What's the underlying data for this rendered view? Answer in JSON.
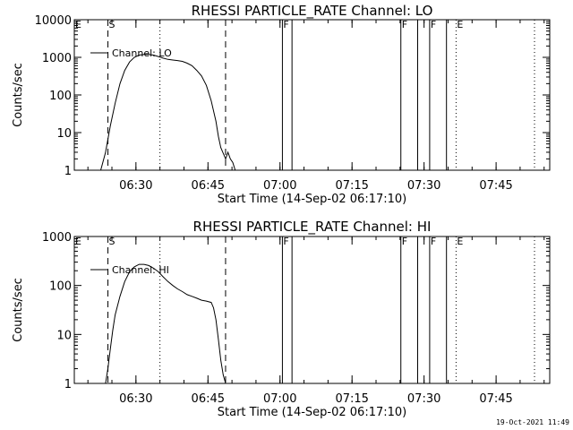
{
  "timestamp": "19-Oct-2021 11:49",
  "chart_data": [
    {
      "type": "line",
      "title": "RHESSI PARTICLE_RATE Channel: LO",
      "ylabel": "Counts/sec",
      "xlabel": "Start Time (14-Sep-02 06:17:10)",
      "yscale": "log",
      "ylim": [
        1,
        10000
      ],
      "yticks": [
        "1",
        "10",
        "100",
        "1000",
        "10000"
      ],
      "xlim": [
        "06:17:10",
        "07:56:10"
      ],
      "xticks": [
        "06:30",
        "06:45",
        "07:00",
        "07:15",
        "07:30",
        "07:45"
      ],
      "legend": {
        "placement": "top-left",
        "entries": [
          "Channel: LO"
        ]
      },
      "series": [
        {
          "name": "Channel: LO",
          "x": [
            "06:22:40",
            "06:23:40",
            "06:24:40",
            "06:25:40",
            "06:26:40",
            "06:27:40",
            "06:28:40",
            "06:29:40",
            "06:30:40",
            "06:31:40",
            "06:32:40",
            "06:33:40",
            "06:34:40",
            "06:35:40",
            "06:36:40",
            "06:37:40",
            "06:38:40",
            "06:39:40",
            "06:40:40",
            "06:41:40",
            "06:42:40",
            "06:43:40",
            "06:44:40",
            "06:45:40",
            "06:46:40",
            "06:47:10",
            "06:47:40",
            "06:48:40",
            "06:49:10",
            "06:49:40",
            "06:50:10",
            "06:50:40"
          ],
          "values": [
            1,
            3,
            15,
            60,
            200,
            450,
            750,
            1000,
            1150,
            1200,
            1200,
            1150,
            1050,
            950,
            880,
            850,
            820,
            780,
            700,
            600,
            450,
            320,
            180,
            70,
            20,
            8,
            4,
            2,
            3,
            2,
            1.6,
            1
          ]
        }
      ]
    },
    {
      "type": "line",
      "title": "RHESSI PARTICLE_RATE Channel: HI",
      "ylabel": "Counts/sec",
      "xlabel": "Start Time (14-Sep-02 06:17:10)",
      "yscale": "log",
      "ylim": [
        1,
        1000
      ],
      "yticks": [
        "1",
        "10",
        "100",
        "1000"
      ],
      "xlim": [
        "06:17:10",
        "07:56:10"
      ],
      "xticks": [
        "06:30",
        "06:45",
        "07:00",
        "07:15",
        "07:30",
        "07:45"
      ],
      "legend": {
        "placement": "top-left",
        "entries": [
          "Channel: HI"
        ]
      },
      "series": [
        {
          "name": "Channel: HI",
          "x": [
            "06:23:40",
            "06:24:10",
            "06:24:40",
            "06:25:10",
            "06:25:40",
            "06:26:40",
            "06:27:40",
            "06:28:40",
            "06:29:40",
            "06:30:40",
            "06:31:40",
            "06:32:40",
            "06:33:40",
            "06:34:40",
            "06:35:40",
            "06:36:40",
            "06:37:40",
            "06:38:40",
            "06:39:40",
            "06:40:40",
            "06:41:40",
            "06:42:40",
            "06:43:40",
            "06:44:40",
            "06:45:40",
            "06:46:10",
            "06:46:40",
            "06:47:10",
            "06:47:40",
            "06:48:10",
            "06:48:40"
          ],
          "values": [
            1,
            2,
            5,
            12,
            25,
            60,
            120,
            190,
            240,
            270,
            270,
            255,
            225,
            190,
            150,
            120,
            100,
            85,
            75,
            65,
            60,
            55,
            50,
            48,
            45,
            35,
            20,
            8,
            3,
            1.5,
            1
          ]
        }
      ]
    }
  ],
  "markers": {
    "dashed": [
      {
        "time": "06:24:10",
        "label": "S"
      },
      {
        "time": "06:48:40",
        "label": ""
      }
    ],
    "dotted": [
      {
        "time": "06:17:10",
        "label": "E"
      },
      {
        "time": "06:35:00",
        "label": ""
      },
      {
        "time": "07:36:40",
        "label": "E"
      },
      {
        "time": "07:53:00",
        "label": ""
      }
    ],
    "solid": [
      {
        "time": "07:00:30",
        "label": "F"
      },
      {
        "time": "07:02:30",
        "label": ""
      },
      {
        "time": "07:25:10",
        "label": "F"
      },
      {
        "time": "07:28:40",
        "label": ""
      },
      {
        "time": "07:31:10",
        "label": "F"
      },
      {
        "time": "07:34:40",
        "label": ""
      }
    ]
  }
}
